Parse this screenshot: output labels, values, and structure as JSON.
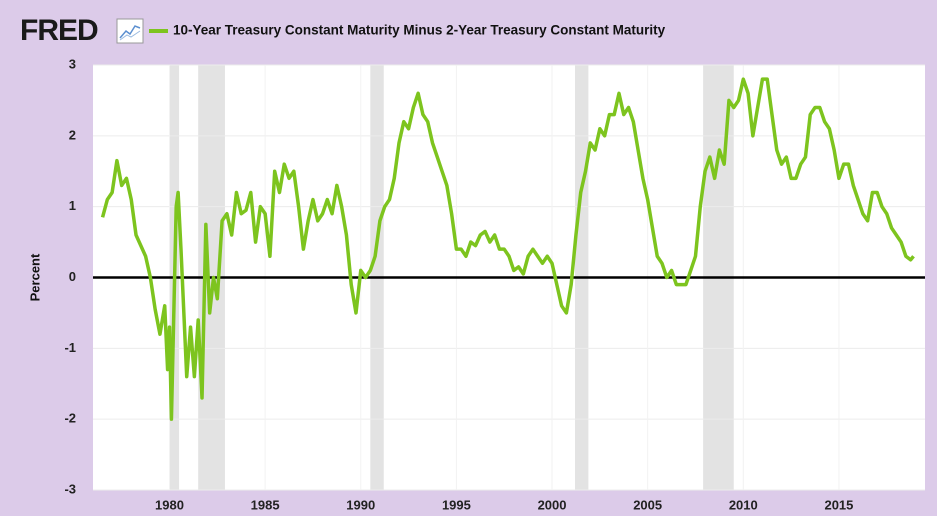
{
  "chart_data": {
    "type": "line",
    "logo": "FRED",
    "ylabel": "Percent",
    "xlim": [
      1976,
      2019.5
    ],
    "ylim": [
      -3,
      3
    ],
    "xticks": [
      1980,
      1985,
      1990,
      1995,
      2000,
      2005,
      2010,
      2015
    ],
    "yticks": [
      -3,
      -2,
      -1,
      0,
      1,
      2,
      3
    ],
    "grid": true,
    "baseline": 0,
    "recessions": [
      [
        1980.0,
        1980.5
      ],
      [
        1981.5,
        1982.9
      ],
      [
        1990.5,
        1991.2
      ],
      [
        2001.2,
        2001.9
      ],
      [
        2007.9,
        2009.5
      ]
    ],
    "x": [
      1976.5,
      1976.75,
      1977,
      1977.25,
      1977.5,
      1977.75,
      1978,
      1978.25,
      1978.5,
      1978.75,
      1979,
      1979.25,
      1979.5,
      1979.75,
      1979.9,
      1980,
      1980.1,
      1980.35,
      1980.45,
      1980.6,
      1980.75,
      1980.9,
      1981.1,
      1981.3,
      1981.5,
      1981.7,
      1981.9,
      1982.1,
      1982.3,
      1982.5,
      1982.75,
      1983,
      1983.25,
      1983.5,
      1983.75,
      1984,
      1984.25,
      1984.5,
      1984.75,
      1985,
      1985.25,
      1985.5,
      1985.75,
      1986,
      1986.25,
      1986.5,
      1986.75,
      1987,
      1987.25,
      1987.5,
      1987.75,
      1988,
      1988.25,
      1988.5,
      1988.75,
      1989,
      1989.25,
      1989.5,
      1989.75,
      1990,
      1990.25,
      1990.5,
      1990.75,
      1991,
      1991.25,
      1991.5,
      1991.75,
      1992,
      1992.25,
      1992.5,
      1992.75,
      1993,
      1993.25,
      1993.5,
      1993.75,
      1994,
      1994.25,
      1994.5,
      1994.75,
      1995,
      1995.25,
      1995.5,
      1995.75,
      1996,
      1996.25,
      1996.5,
      1996.75,
      1997,
      1997.25,
      1997.5,
      1997.75,
      1998,
      1998.25,
      1998.5,
      1998.75,
      1999,
      1999.25,
      1999.5,
      1999.75,
      2000,
      2000.25,
      2000.5,
      2000.75,
      2001,
      2001.25,
      2001.5,
      2001.75,
      2002,
      2002.25,
      2002.5,
      2002.75,
      2003,
      2003.25,
      2003.5,
      2003.75,
      2004,
      2004.25,
      2004.5,
      2004.75,
      2005,
      2005.25,
      2005.5,
      2005.75,
      2006,
      2006.25,
      2006.5,
      2006.75,
      2007,
      2007.25,
      2007.5,
      2007.75,
      2008,
      2008.25,
      2008.5,
      2008.75,
      2009,
      2009.25,
      2009.5,
      2009.75,
      2010,
      2010.25,
      2010.5,
      2010.75,
      2011,
      2011.25,
      2011.5,
      2011.75,
      2012,
      2012.25,
      2012.5,
      2012.75,
      2013,
      2013.25,
      2013.5,
      2013.75,
      2014,
      2014.25,
      2014.5,
      2014.75,
      2015,
      2015.25,
      2015.5,
      2015.75,
      2016,
      2016.25,
      2016.5,
      2016.75,
      2017,
      2017.25,
      2017.5,
      2017.75,
      2018,
      2018.25,
      2018.5,
      2018.75,
      2018.9
    ],
    "series": [
      {
        "name": "10-Year Treasury Constant Maturity Minus 2-Year Treasury Constant Maturity",
        "color": "#7dc41e",
        "values": [
          0.85,
          1.1,
          1.2,
          1.65,
          1.3,
          1.4,
          1.1,
          0.6,
          0.45,
          0.3,
          0.0,
          -0.45,
          -0.8,
          -0.4,
          -1.3,
          -0.7,
          -2.0,
          1.0,
          1.2,
          0.4,
          -0.5,
          -1.4,
          -0.7,
          -1.4,
          -0.6,
          -1.7,
          0.75,
          -0.5,
          0.0,
          -0.3,
          0.8,
          0.9,
          0.6,
          1.2,
          0.9,
          0.95,
          1.2,
          0.5,
          1.0,
          0.9,
          0.3,
          1.5,
          1.2,
          1.6,
          1.4,
          1.5,
          1.0,
          0.4,
          0.8,
          1.1,
          0.8,
          0.9,
          1.1,
          0.9,
          1.3,
          1.0,
          0.6,
          -0.1,
          -0.5,
          0.1,
          0.0,
          0.1,
          0.3,
          0.8,
          1.0,
          1.1,
          1.4,
          1.9,
          2.2,
          2.1,
          2.4,
          2.6,
          2.3,
          2.2,
          1.9,
          1.7,
          1.5,
          1.3,
          0.9,
          0.4,
          0.4,
          0.3,
          0.5,
          0.45,
          0.6,
          0.65,
          0.5,
          0.6,
          0.4,
          0.4,
          0.3,
          0.1,
          0.15,
          0.05,
          0.3,
          0.4,
          0.3,
          0.2,
          0.3,
          0.2,
          -0.1,
          -0.4,
          -0.5,
          -0.1,
          0.6,
          1.2,
          1.5,
          1.9,
          1.8,
          2.1,
          2.0,
          2.3,
          2.3,
          2.6,
          2.3,
          2.4,
          2.2,
          1.8,
          1.4,
          1.1,
          0.7,
          0.3,
          0.2,
          0.0,
          0.1,
          -0.1,
          -0.1,
          -0.1,
          0.1,
          0.3,
          1.0,
          1.5,
          1.7,
          1.4,
          1.8,
          1.6,
          2.5,
          2.4,
          2.5,
          2.8,
          2.6,
          2.0,
          2.4,
          2.8,
          2.8,
          2.3,
          1.8,
          1.6,
          1.7,
          1.4,
          1.4,
          1.6,
          1.7,
          2.3,
          2.4,
          2.4,
          2.2,
          2.1,
          1.8,
          1.4,
          1.6,
          1.6,
          1.3,
          1.1,
          0.9,
          0.8,
          1.2,
          1.2,
          1.0,
          0.9,
          0.7,
          0.6,
          0.5,
          0.3,
          0.25,
          0.3
        ]
      }
    ]
  }
}
